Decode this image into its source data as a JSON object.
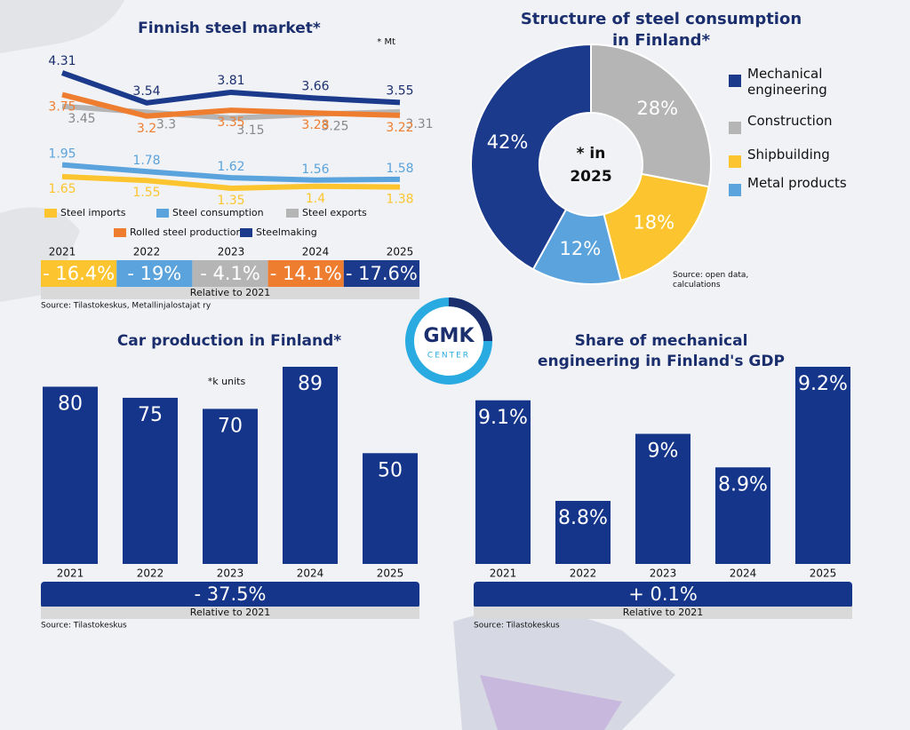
{
  "chart_data": [
    {
      "type": "line",
      "title": "Finnish steel market*",
      "note": "* Mt",
      "categories": [
        "2021",
        "2022",
        "2023",
        "2024",
        "2025"
      ],
      "series": [
        {
          "name": "Steel imports",
          "color": "#fcc52f",
          "values": [
            1.65,
            1.55,
            1.35,
            1.4,
            1.38
          ]
        },
        {
          "name": "Steel consumption",
          "color": "#5ba3dc",
          "values": [
            1.95,
            1.78,
            1.62,
            1.56,
            1.58
          ]
        },
        {
          "name": "Steel exports",
          "color": "#b5b5b5",
          "values": [
            3.45,
            3.3,
            3.15,
            3.25,
            3.31
          ]
        },
        {
          "name": "Rolled steel production",
          "color": "#ee7d30",
          "values": [
            3.75,
            3.2,
            3.35,
            3.28,
            3.22
          ]
        },
        {
          "name": "Steelmaking",
          "color": "#1b3a8c",
          "values": [
            4.31,
            3.54,
            3.81,
            3.66,
            3.55
          ]
        }
      ],
      "relative_changes": [
        "- 16.4%",
        "- 19%",
        "- 4.1%",
        "- 14.1%",
        "- 17.6%"
      ],
      "relative_note": "Relative to 2021",
      "source": "Source: Tilastokeskus, Metallinjalostajat ry"
    },
    {
      "type": "pie",
      "title_lines": [
        "Structure of steel consumption",
        "in Finland*"
      ],
      "center_lines": [
        "* in",
        "2025"
      ],
      "categories": [
        "Mechanical engineering",
        "Construction",
        "Shipbuilding",
        "Metal products"
      ],
      "values": [
        42,
        28,
        18,
        12
      ],
      "value_labels": [
        "42%",
        "28%",
        "18%",
        "12%"
      ],
      "colors": [
        "#1b3a8c",
        "#b5b5b5",
        "#fcc52f",
        "#5ba3dc"
      ],
      "source": "Source: open data, calculations"
    },
    {
      "type": "bar",
      "title": "Car production in Finland*",
      "note": "*k units",
      "categories": [
        "2021",
        "2022",
        "2023",
        "2024",
        "2025"
      ],
      "values": [
        80,
        75,
        70,
        89,
        50
      ],
      "color": "#14358a",
      "relative_change": "- 37.5%",
      "relative_note": "Relative to 2021",
      "source": "Source: Tilastokeskus"
    },
    {
      "type": "bar",
      "title_lines": [
        "Share of mechanical",
        "engineering in Finland's GDP"
      ],
      "categories": [
        "2021",
        "2022",
        "2023",
        "2024",
        "2025"
      ],
      "values": [
        9.1,
        8.8,
        9,
        8.9,
        9.2
      ],
      "value_labels": [
        "9.1%",
        "8.8%",
        "9%",
        "8.9%",
        "9.2%"
      ],
      "color": "#14358a",
      "relative_change": "+ 0.1%",
      "relative_note": "Relative to 2021",
      "source": "Source: Tilastokeskus"
    }
  ],
  "logo": {
    "top": "GMK",
    "bottom": "CENTER"
  }
}
